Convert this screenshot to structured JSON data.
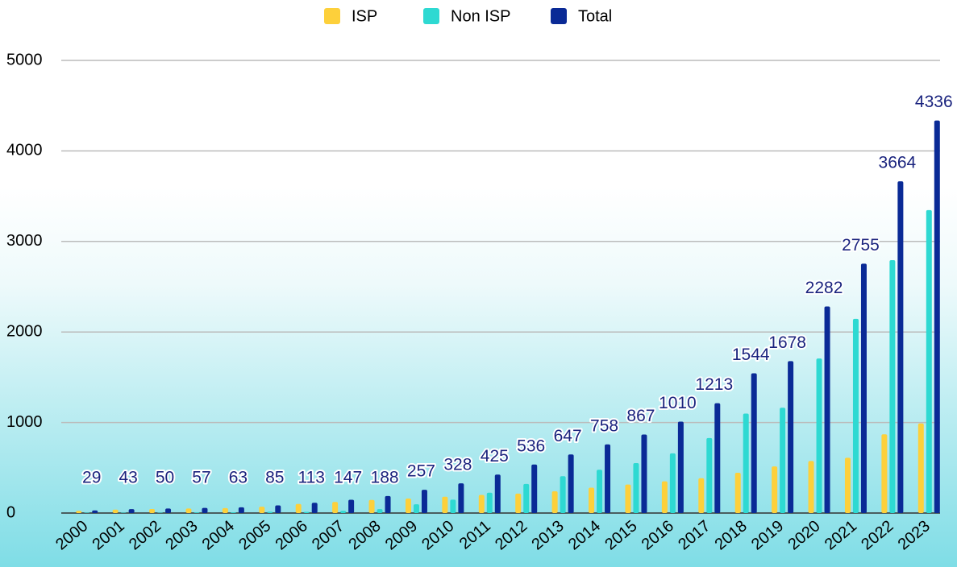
{
  "chart_data": {
    "type": "bar",
    "categories": [
      "2000",
      "2001",
      "2002",
      "2003",
      "2004",
      "2005",
      "2006",
      "2007",
      "2008",
      "2009",
      "2010",
      "2011",
      "2012",
      "2013",
      "2014",
      "2015",
      "2016",
      "2017",
      "2018",
      "2019",
      "2020",
      "2021",
      "2022",
      "2023"
    ],
    "series": [
      {
        "name": "ISP",
        "color": "#fdd03b",
        "values": [
          25,
          38,
          45,
          50,
          55,
          70,
          100,
          122,
          145,
          160,
          180,
          200,
          215,
          240,
          280,
          315,
          350,
          385,
          445,
          515,
          575,
          610,
          870,
          990
        ]
      },
      {
        "name": "Non ISP",
        "color": "#2ed9d2",
        "values": [
          4,
          5,
          5,
          7,
          8,
          15,
          13,
          25,
          43,
          97,
          148,
          225,
          321,
          407,
          478,
          552,
          660,
          828,
          1099,
          1163,
          1707,
          2145,
          2794,
          3346
        ]
      },
      {
        "name": "Total",
        "color": "#0a2a96",
        "values": [
          29,
          43,
          50,
          57,
          63,
          85,
          113,
          147,
          188,
          257,
          328,
          425,
          536,
          647,
          758,
          867,
          1010,
          1213,
          1544,
          1678,
          2282,
          2755,
          3664,
          4336
        ]
      }
    ],
    "ylim": [
      0,
      5000
    ],
    "yticks": [
      0,
      1000,
      2000,
      3000,
      4000,
      5000
    ],
    "grid": true,
    "legend": "top"
  }
}
